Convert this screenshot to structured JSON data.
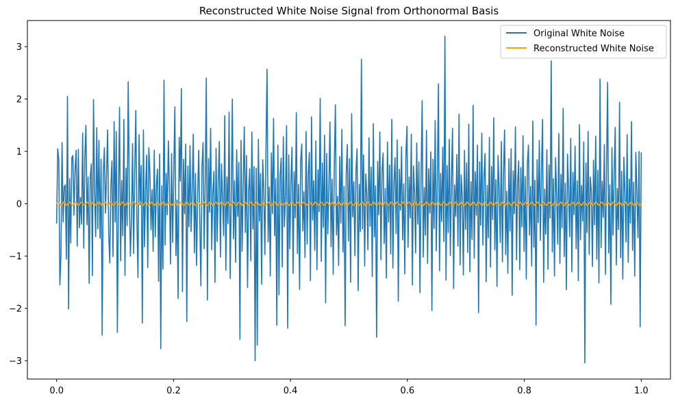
{
  "chart_data": {
    "type": "line",
    "title": "Reconstructed White Noise Signal from Orthonormal Basis",
    "xlabel": "",
    "ylabel": "",
    "xlim": [
      -0.05,
      1.05
    ],
    "ylim": [
      -3.35,
      3.5
    ],
    "xticks": [
      0.0,
      0.2,
      0.4,
      0.6,
      0.8,
      1.0
    ],
    "xtick_labels": [
      "0.0",
      "0.2",
      "0.4",
      "0.6",
      "0.8",
      "1.0"
    ],
    "yticks": [
      -3,
      -2,
      -1,
      0,
      1,
      2,
      3
    ],
    "ytick_labels": [
      "−3",
      "−2",
      "−1",
      "0",
      "1",
      "2",
      "3"
    ],
    "grid": false,
    "legend_position": "top-right",
    "series": [
      {
        "name": "Original White Noise",
        "color": "#1f77b4",
        "x_start": 0.0,
        "x_end": 1.0,
        "values": [
          -0.38,
          1.05,
          0.84,
          -1.55,
          -0.98,
          1.17,
          -0.35,
          0.32,
          0.36,
          -1.06,
          2.05,
          -2.01,
          0.48,
          -0.75,
          0.88,
          0.92,
          -0.22,
          0.65,
          1.02,
          -0.81,
          1.04,
          -0.46,
          0.12,
          -0.39,
          1.35,
          -0.85,
          0.88,
          1.5,
          -0.4,
          0.51,
          -1.52,
          0.52,
          0.76,
          -1.37,
          1.99,
          0.28,
          -0.63,
          1.45,
          -0.48,
          1.21,
          -0.66,
          0.85,
          -2.51,
          0.57,
          1.07,
          -0.18,
          0.54,
          1.41,
          -0.59,
          -1.13,
          0.33,
          0.82,
          -1.01,
          1.57,
          -0.35,
          1.38,
          -2.46,
          0.11,
          1.84,
          -1.09,
          0.44,
          -0.61,
          1.61,
          -1.37,
          0.68,
          -0.42,
          2.33,
          0.21,
          -1.0,
          -0.33,
          1.15,
          -0.95,
          0.61,
          1.78,
          -0.29,
          -1.41,
          1.32,
          -0.02,
          0.73,
          -2.28,
          1.41,
          -0.82,
          0.25,
          0.93,
          -1.22,
          1.07,
          0.59,
          -0.5,
          0.27,
          -0.91,
          1.02,
          -0.63,
          0.36,
          0.66,
          -1.48,
          0.95,
          -2.77,
          0.34,
          -1.25,
          2.36,
          -0.79,
          0.58,
          -0.21,
          1.2,
          0.33,
          -1.15,
          0.96,
          -0.74,
          0.61,
          1.85,
          -0.99,
          0.07,
          -1.81,
          1.27,
          0.43,
          2.2,
          -1.68,
          0.85,
          -0.19,
          1.14,
          -2.25,
          0.72,
          -0.44,
          1.11,
          -0.53,
          0.26,
          1.33,
          -0.94,
          0.58,
          -1.18,
          0.15,
          1.02,
          -0.32,
          -1.57,
          0.69,
          1.17,
          -0.86,
          0.41,
          2.4,
          -1.84,
          0.86,
          -0.16,
          1.44,
          -0.88,
          0.21,
          0.62,
          -1.5,
          1.06,
          -0.72,
          0.37,
          1.19,
          -1.02,
          0.76,
          0.09,
          -0.61,
          1.68,
          -1.27,
          0.51,
          -0.38,
          1.75,
          -1.43,
          0.12,
          2.0,
          -0.67,
          0.44,
          -1.12,
          1.03,
          -0.24,
          0.79,
          -2.59,
          1.21,
          -0.91,
          0.35,
          1.47,
          -0.55,
          0.92,
          -1.6,
          0.22,
          0.67,
          -1.09,
          1.37,
          -0.48,
          0.71,
          -3.0,
          0.68,
          -2.7,
          1.23,
          -0.33,
          0.58,
          -1.54,
          0.84,
          0.26,
          -0.97,
          1.01,
          2.57,
          -0.73,
          0.32,
          -1.38,
          0.97,
          -0.19,
          1.63,
          -0.61,
          0.48,
          -2.32,
          1.12,
          -1.74,
          0.53,
          0.87,
          -1.21,
          1.28,
          -0.44,
          0.19,
          1.49,
          -2.38,
          0.93,
          -0.86,
          0.41,
          1.08,
          -1.33,
          0.61,
          -0.27,
          1.74,
          -0.95,
          0.37,
          -1.64,
          0.82,
          1.14,
          -0.52,
          0.23,
          -1.03,
          1.38,
          -0.77,
          0.55,
          0.98,
          -1.47,
          1.66,
          -0.31,
          0.44,
          -0.89,
          1.2,
          -1.26,
          0.65,
          -0.15,
          2.01,
          -1.1,
          0.78,
          -0.45,
          1.31,
          -1.89,
          0.96,
          -0.58,
          0.28,
          1.56,
          -0.82,
          0.47,
          -1.35,
          0.74,
          1.89,
          -0.6,
          0.14,
          -1.18,
          0.9,
          -0.37,
          1.42,
          -0.92,
          0.33,
          -2.33,
          0.58,
          1.13,
          -0.71,
          0.86,
          -1.5,
          1.72,
          -0.25,
          0.42,
          -0.99,
          0.63,
          1.05,
          -1.66,
          0.37,
          -0.53,
          2.76,
          -0.48,
          0.93,
          -1.19,
          0.57,
          0.18,
          -0.88,
          1.26,
          -0.43,
          0.7,
          -1.39,
          1.53,
          -0.63,
          0.34,
          -2.55,
          0.81,
          -0.21,
          1.37,
          -1.07,
          0.62,
          0.97,
          -0.76,
          0.29,
          -1.42,
          1.18,
          -0.35,
          0.74,
          -0.96,
          1.61,
          -1.23,
          0.4,
          0.88,
          -0.57,
          1.22,
          -1.86,
          0.66,
          -0.12,
          1.09,
          -0.69,
          0.38,
          -1.34,
          0.91,
          1.48,
          -0.83,
          0.51,
          -0.27,
          1.33,
          -1.55,
          0.72,
          0.2,
          -0.94,
          1.16,
          -0.39,
          0.8,
          -1.7,
          0.49,
          1.97,
          -1.02,
          0.31,
          -0.6,
          1.4,
          -1.14,
          0.67,
          -0.18,
          0.99,
          -2.04,
          0.85,
          -0.47,
          1.59,
          -0.9,
          0.43,
          2.29,
          -1.28,
          0.58,
          -0.34,
          1.08,
          -0.72,
          3.2,
          -1.46,
          0.73,
          -0.55,
          1.23,
          -0.99,
          0.47,
          1.44,
          -1.62,
          0.36,
          -0.24,
          0.94,
          -0.81,
          1.71,
          -1.17,
          0.55,
          0.13,
          -1.36,
          1.02,
          -0.49,
          0.78,
          -0.93,
          1.52,
          -1.3,
          0.42,
          -0.68,
          1.88,
          -1.04,
          0.61,
          -0.22,
          1.12,
          -2.08,
          0.8,
          -0.41,
          1.35,
          -0.79,
          0.5,
          0.96,
          -1.49,
          0.35,
          -0.65,
          1.27,
          -1.21,
          0.71,
          -0.3,
          1.64,
          -0.88,
          0.46,
          -1.58,
          0.92,
          0.27,
          -0.74,
          1.19,
          -1.11,
          0.57,
          1.41,
          -0.97,
          0.24,
          -1.33,
          0.86,
          -0.52,
          1.05,
          -1.75,
          0.63,
          -0.19,
          1.47,
          -1.07,
          0.39,
          0.82,
          -1.26,
          0.69,
          -0.44,
          1.3,
          -0.91,
          0.52,
          -1.44,
          0.76,
          1.12,
          -0.6,
          0.33,
          -1.19,
          1.58,
          -0.83,
          0.45,
          -2.32,
          0.84,
          -0.36,
          1.21,
          -0.7,
          0.59,
          1.61,
          -1.5,
          0.28,
          -0.58,
          1.03,
          -1.25,
          0.74,
          -0.27,
          2.73,
          -0.92,
          0.48,
          -1.38,
          0.88,
          0.17,
          -0.77,
          1.34,
          -1.14,
          0.56,
          -0.46,
          1.82,
          -1.01,
          0.39,
          -1.64,
          0.95,
          0.31,
          -0.63,
          1.25,
          -1.3,
          0.6,
          -0.21,
          1.1,
          -0.86,
          0.44,
          -1.47,
          1.51,
          -0.69,
          0.35,
          -0.33,
          1.18,
          -3.04,
          0.78,
          -0.55,
          1.38,
          -0.97,
          0.51,
          0.23,
          -1.2,
          0.83,
          -0.4,
          1.29,
          -1.06,
          0.64,
          -1.51,
          2.38,
          -0.84,
          0.43,
          -0.26,
          1.13,
          -1.35,
          0.7,
          2.32,
          -0.94,
          0.36,
          -1.92,
          1.07,
          -0.6,
          0.53,
          1.46,
          -1.17,
          0.29,
          -0.49,
          1.94,
          -1.03,
          0.62,
          -1.44,
          0.89,
          0.19,
          -0.73,
          1.32,
          -1.12,
          0.47,
          -0.37,
          1.57,
          -0.89,
          0.41,
          -1.38,
          0.98,
          0.26,
          -0.65,
          1.0,
          -2.35,
          0.98
        ]
      },
      {
        "name": "Reconstructed White Noise",
        "color": "#ffa500",
        "x_start": 0.0,
        "x_end": 1.0,
        "amplitude": 0.03,
        "cycles": 100,
        "values_summary": "approximately 0 (oscillating within ±0.03)"
      }
    ]
  }
}
